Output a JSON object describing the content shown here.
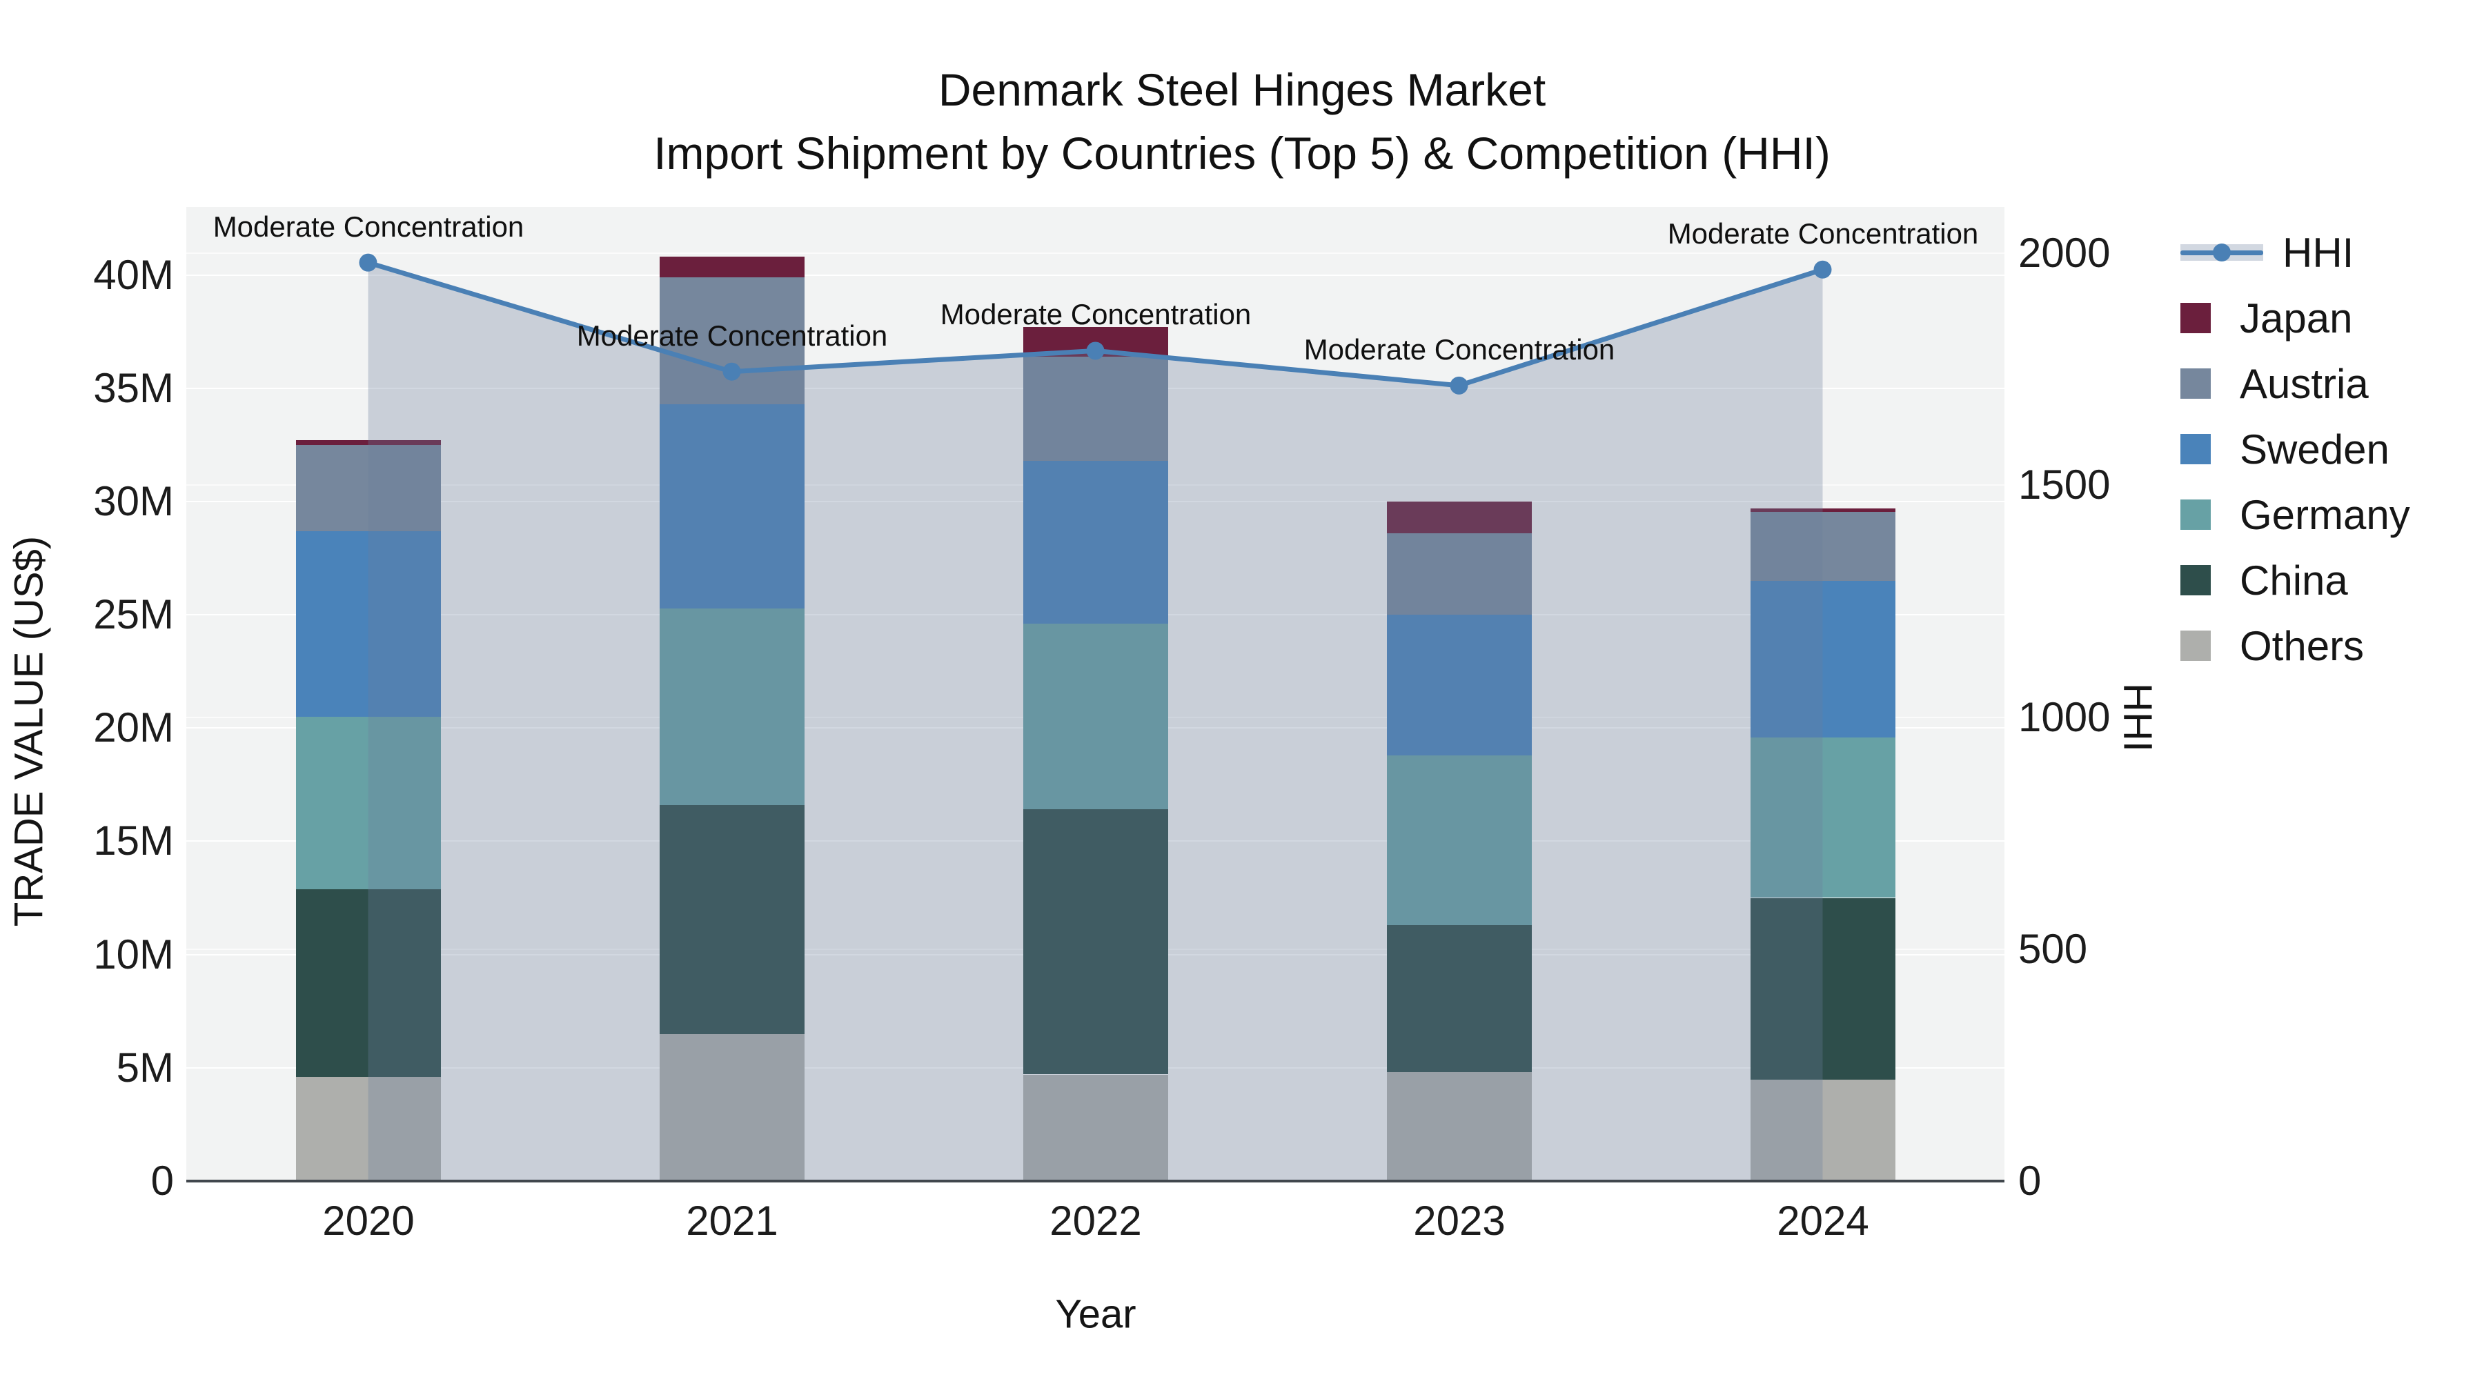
{
  "title": {
    "line1": "Denmark Steel Hinges Market",
    "line2": "Import Shipment by Countries (Top 5) & Competition (HHI)"
  },
  "legend": {
    "items": [
      {
        "label": "HHI",
        "type": "line",
        "color": "#4a80b5"
      },
      {
        "label": "Japan",
        "type": "swatch",
        "color": "#6b1f3d"
      },
      {
        "label": "Austria",
        "type": "swatch",
        "color": "#76879d"
      },
      {
        "label": "Sweden",
        "type": "swatch",
        "color": "#4a83ba"
      },
      {
        "label": "Germany",
        "type": "swatch",
        "color": "#67a1a5"
      },
      {
        "label": "China",
        "type": "swatch",
        "color": "#2e4e4b"
      },
      {
        "label": "Others",
        "type": "swatch",
        "color": "#aeafac"
      }
    ]
  },
  "chart_data": {
    "type": "bar+line",
    "title": "Denmark Steel Hinges Market — Import Shipment by Countries (Top 5) & Competition (HHI)",
    "categories": [
      "2020",
      "2021",
      "2022",
      "2023",
      "2024"
    ],
    "stack_order_bottom_to_top": [
      "Others",
      "China",
      "Germany",
      "Sweden",
      "Austria",
      "Japan"
    ],
    "series": [
      {
        "name": "Others",
        "color": "#aeafac",
        "values": [
          4.6,
          6.5,
          4.7,
          4.8,
          4.5
        ]
      },
      {
        "name": "China",
        "color": "#2e4e4b",
        "values": [
          8.3,
          10.1,
          11.7,
          6.5,
          8.0
        ]
      },
      {
        "name": "Germany",
        "color": "#67a1a5",
        "values": [
          7.6,
          8.7,
          8.2,
          7.5,
          7.1
        ]
      },
      {
        "name": "Sweden",
        "color": "#4a83ba",
        "values": [
          8.2,
          9.0,
          7.2,
          6.2,
          6.9
        ]
      },
      {
        "name": "Austria",
        "color": "#76879d",
        "values": [
          3.8,
          5.6,
          4.6,
          3.6,
          3.05
        ]
      },
      {
        "name": "Japan",
        "color": "#6b1f3d",
        "values": [
          0.2,
          0.9,
          1.3,
          1.4,
          0.15
        ]
      }
    ],
    "bar_totals_musd": [
      32.7,
      40.8,
      37.7,
      30.0,
      29.7
    ],
    "line_series": {
      "name": "HHI",
      "color": "#4a80b5",
      "fill_color": "rgba(105,126,154,0.30)",
      "values": [
        1980,
        1745,
        1790,
        1715,
        1965
      ],
      "point_annotation": "Moderate Concentration"
    },
    "xlabel": "Year",
    "ylabel": "TRADE VALUE (US$)",
    "y2label": "HHI",
    "ylim": [
      0,
      43
    ],
    "y2lim": [
      0,
      2100
    ],
    "yticks": [
      {
        "v": 0,
        "label": "0"
      },
      {
        "v": 5,
        "label": "5M"
      },
      {
        "v": 10,
        "label": "10M"
      },
      {
        "v": 15,
        "label": "15M"
      },
      {
        "v": 20,
        "label": "20M"
      },
      {
        "v": 25,
        "label": "25M"
      },
      {
        "v": 30,
        "label": "30M"
      },
      {
        "v": 35,
        "label": "35M"
      },
      {
        "v": 40,
        "label": "40M"
      }
    ],
    "y2ticks": [
      {
        "v": 0,
        "label": "0"
      },
      {
        "v": 500,
        "label": "500"
      },
      {
        "v": 1000,
        "label": "1000"
      },
      {
        "v": 1500,
        "label": "1500"
      },
      {
        "v": 2000,
        "label": "2000"
      }
    ],
    "grid": true,
    "legend_position": "right",
    "plot_bg": "#f2f3f3"
  }
}
